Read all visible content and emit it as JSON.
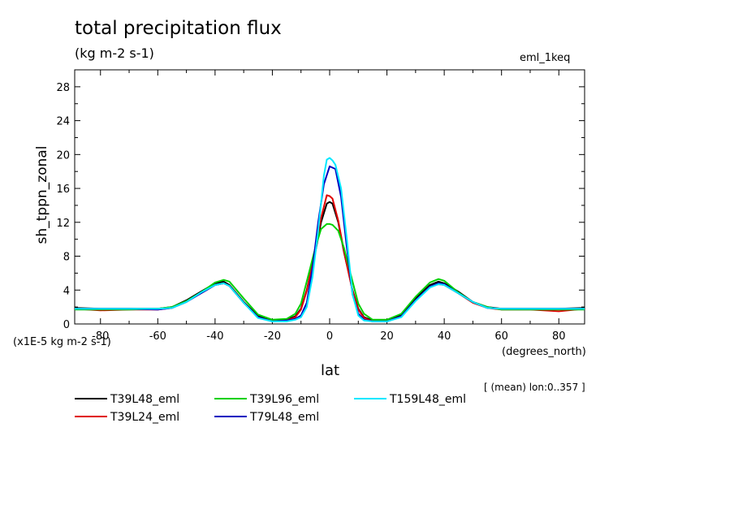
{
  "chart_data": {
    "type": "line",
    "title": "total precipitation flux",
    "units": "(kg m-2 s-1)",
    "dataset": "eml_1keq",
    "ylabel": "sh_tppn_zonal",
    "xlabel": "lat",
    "x_units": "(degrees_north)",
    "scale_note": "(x1E-5 kg m-2 s-1)",
    "footnote": "[ (mean) lon:0..357 ]",
    "xlim": [
      -89,
      89
    ],
    "ylim": [
      0,
      30
    ],
    "x_ticks": [
      -80,
      -60,
      -40,
      -20,
      0,
      20,
      40,
      60,
      80
    ],
    "x_tick_labels": [
      "-80",
      "-60",
      "-40",
      "-20",
      "0",
      "20",
      "40",
      "60",
      "80"
    ],
    "y_ticks": [
      0,
      4,
      8,
      12,
      16,
      20,
      24,
      28
    ],
    "y_tick_labels": [
      "0",
      "4",
      "8",
      "12",
      "16",
      "20",
      "24",
      "28"
    ],
    "grid": false,
    "legend_position": "bottom",
    "series": [
      {
        "name": "T39L48_eml",
        "color": "#000000",
        "x": [
          -89,
          -80,
          -70,
          -60,
          -55,
          -50,
          -45,
          -40,
          -37,
          -35,
          -30,
          -25,
          -20,
          -15,
          -12,
          -10,
          -8,
          -5,
          -3,
          -1,
          0,
          1,
          3,
          5,
          8,
          10,
          12,
          15,
          20,
          25,
          30,
          35,
          38,
          40,
          45,
          50,
          55,
          60,
          70,
          80,
          89
        ],
        "y": [
          1.9,
          1.8,
          1.8,
          1.8,
          2.0,
          2.8,
          3.8,
          4.8,
          5.0,
          4.6,
          2.6,
          0.9,
          0.4,
          0.5,
          0.9,
          1.8,
          4.0,
          8.5,
          12.0,
          14.2,
          14.4,
          14.2,
          12.0,
          8.5,
          4.0,
          1.8,
          0.8,
          0.4,
          0.4,
          1.0,
          3.0,
          4.6,
          5.0,
          4.8,
          3.8,
          2.6,
          2.0,
          1.8,
          1.8,
          1.8,
          1.9
        ]
      },
      {
        "name": "T39L24_eml",
        "color": "#e00000",
        "x": [
          -89,
          -80,
          -70,
          -60,
          -55,
          -50,
          -45,
          -40,
          -37,
          -35,
          -30,
          -25,
          -20,
          -15,
          -12,
          -10,
          -8,
          -5,
          -3,
          -1,
          0,
          1,
          3,
          5,
          8,
          10,
          12,
          15,
          20,
          25,
          30,
          35,
          38,
          40,
          45,
          50,
          55,
          60,
          70,
          80,
          89
        ],
        "y": [
          1.8,
          1.6,
          1.7,
          1.7,
          1.9,
          2.7,
          3.6,
          4.6,
          4.8,
          4.5,
          2.5,
          0.8,
          0.3,
          0.4,
          0.8,
          1.7,
          3.9,
          8.8,
          12.5,
          15.2,
          15.1,
          14.8,
          12.2,
          8.6,
          3.9,
          1.7,
          0.7,
          0.3,
          0.3,
          0.9,
          2.8,
          4.4,
          4.7,
          4.6,
          3.6,
          2.5,
          1.9,
          1.7,
          1.7,
          1.5,
          1.8
        ]
      },
      {
        "name": "T39L96_eml",
        "color": "#00d000",
        "x": [
          -89,
          -80,
          -70,
          -60,
          -55,
          -50,
          -45,
          -40,
          -37,
          -35,
          -30,
          -25,
          -20,
          -15,
          -12,
          -10,
          -8,
          -5,
          -3,
          -1,
          0,
          1,
          3,
          5,
          8,
          10,
          12,
          15,
          20,
          25,
          30,
          35,
          38,
          40,
          45,
          50,
          55,
          60,
          70,
          80,
          89
        ],
        "y": [
          1.7,
          1.7,
          1.7,
          1.8,
          2.0,
          2.7,
          3.7,
          4.9,
          5.2,
          5.0,
          3.0,
          1.1,
          0.5,
          0.6,
          1.2,
          2.4,
          5.0,
          9.0,
          11.2,
          11.8,
          11.8,
          11.7,
          11.0,
          9.0,
          5.0,
          2.4,
          1.2,
          0.5,
          0.5,
          1.2,
          3.2,
          4.9,
          5.3,
          5.1,
          3.7,
          2.6,
          2.0,
          1.7,
          1.7,
          1.7,
          1.7
        ]
      },
      {
        "name": "T79L48_eml",
        "color": "#0000c0",
        "x": [
          -89,
          -80,
          -70,
          -60,
          -55,
          -50,
          -45,
          -40,
          -37,
          -35,
          -30,
          -25,
          -20,
          -15,
          -12,
          -10,
          -8,
          -6,
          -4,
          -2,
          0,
          2,
          4,
          6,
          8,
          10,
          12,
          15,
          20,
          25,
          30,
          35,
          38,
          40,
          45,
          50,
          55,
          60,
          70,
          80,
          89
        ],
        "y": [
          1.8,
          1.8,
          1.8,
          1.7,
          1.9,
          2.6,
          3.6,
          4.6,
          4.8,
          4.5,
          2.5,
          0.8,
          0.3,
          0.4,
          0.6,
          1.0,
          2.5,
          6.5,
          12.0,
          16.5,
          18.6,
          18.3,
          15.0,
          9.0,
          3.5,
          1.2,
          0.5,
          0.3,
          0.3,
          0.9,
          2.8,
          4.4,
          4.8,
          4.7,
          3.6,
          2.6,
          1.9,
          1.8,
          1.8,
          1.8,
          1.8
        ]
      },
      {
        "name": "T159L48_eml",
        "color": "#00e8ff",
        "x": [
          -89,
          -80,
          -70,
          -60,
          -55,
          -50,
          -45,
          -40,
          -37,
          -35,
          -30,
          -25,
          -20,
          -15,
          -12,
          -10,
          -8,
          -6,
          -4,
          -2,
          -1,
          0,
          1,
          2,
          4,
          6,
          8,
          10,
          12,
          15,
          20,
          25,
          30,
          35,
          38,
          40,
          45,
          50,
          55,
          60,
          70,
          80,
          89
        ],
        "y": [
          1.8,
          1.8,
          1.8,
          1.8,
          1.9,
          2.6,
          3.7,
          4.6,
          4.8,
          4.5,
          2.5,
          0.7,
          0.3,
          0.3,
          0.5,
          0.8,
          2.0,
          5.5,
          11.0,
          17.5,
          19.4,
          19.6,
          19.3,
          18.8,
          16.0,
          10.0,
          3.5,
          1.0,
          0.4,
          0.3,
          0.3,
          0.8,
          2.7,
          4.3,
          4.7,
          4.6,
          3.6,
          2.6,
          1.9,
          1.8,
          1.8,
          1.8,
          1.8
        ]
      }
    ]
  }
}
